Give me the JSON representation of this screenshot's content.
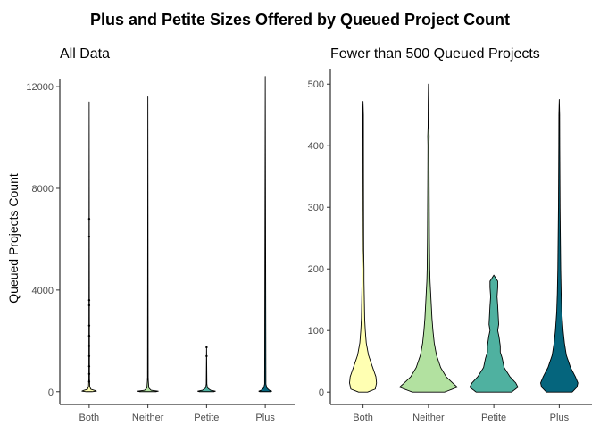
{
  "figure": {
    "title": "Plus and Petite Sizes Offered by Queued Project Count",
    "ylabel": "Queued Projects Count"
  },
  "chart_data": [
    {
      "type": "violin",
      "title": "All Data",
      "xlabel": "",
      "ylabel": "Queued Projects Count",
      "ylim": [
        -500,
        12600
      ],
      "yticks": [
        0,
        4000,
        8000,
        12000
      ],
      "categories": [
        "Both",
        "Neither",
        "Petite",
        "Plus"
      ],
      "fill_colors": [
        "#ffffb2",
        "#b2e1a0",
        "#4fb1a0",
        "#05657d"
      ],
      "series": [
        {
          "category": "Both",
          "max": 11400,
          "outliers": [
            6800,
            6100,
            3600,
            3400,
            2600,
            2200,
            1800,
            1400,
            1000,
            700,
            400
          ],
          "profile": [
            [
              0,
              0.18
            ],
            [
              20,
              0.45
            ],
            [
              50,
              0.35
            ],
            [
              100,
              0.1
            ],
            [
              200,
              0.04
            ],
            [
              500,
              0.02
            ],
            [
              11400,
              0.0
            ]
          ]
        },
        {
          "category": "Neither",
          "max": 11600,
          "outliers": [
            500
          ],
          "profile": [
            [
              0,
              0.5
            ],
            [
              20,
              0.65
            ],
            [
              60,
              0.2
            ],
            [
              150,
              0.06
            ],
            [
              500,
              0.02
            ],
            [
              11600,
              0.0
            ]
          ]
        },
        {
          "category": "Petite",
          "max": 1800,
          "outliers": [
            1750,
            1400
          ],
          "profile": [
            [
              0,
              0.45
            ],
            [
              20,
              0.55
            ],
            [
              60,
              0.25
            ],
            [
              150,
              0.06
            ],
            [
              300,
              0.02
            ],
            [
              1800,
              0.0
            ]
          ]
        },
        {
          "category": "Plus",
          "max": 12400,
          "outliers": [],
          "profile": [
            [
              0,
              0.35
            ],
            [
              20,
              0.4
            ],
            [
              60,
              0.25
            ],
            [
              150,
              0.1
            ],
            [
              300,
              0.04
            ],
            [
              12400,
              0.0
            ]
          ]
        }
      ]
    },
    {
      "type": "violin",
      "title": "Fewer than 500 Queued Projects",
      "xlabel": "",
      "ylabel": "",
      "ylim": [
        -20,
        525
      ],
      "yticks": [
        0,
        100,
        200,
        300,
        400,
        500
      ],
      "categories": [
        "Both",
        "Neither",
        "Petite",
        "Plus"
      ],
      "fill_colors": [
        "#ffffb2",
        "#b2e1a0",
        "#4fb1a0",
        "#05657d"
      ],
      "series": [
        {
          "category": "Both",
          "max": 472,
          "profile": [
            [
              0,
              0.14
            ],
            [
              5,
              0.38
            ],
            [
              15,
              0.42
            ],
            [
              25,
              0.4
            ],
            [
              40,
              0.3
            ],
            [
              60,
              0.17
            ],
            [
              80,
              0.1
            ],
            [
              100,
              0.07
            ],
            [
              120,
              0.05
            ],
            [
              150,
              0.04
            ],
            [
              180,
              0.03
            ],
            [
              200,
              0.03
            ],
            [
              230,
              0.02
            ],
            [
              260,
              0.018
            ],
            [
              300,
              0.016
            ],
            [
              350,
              0.014
            ],
            [
              400,
              0.013
            ],
            [
              450,
              0.012
            ],
            [
              472,
              0.0
            ]
          ]
        },
        {
          "category": "Neither",
          "max": 500,
          "profile": [
            [
              0,
              0.5
            ],
            [
              8,
              0.9
            ],
            [
              15,
              0.75
            ],
            [
              25,
              0.55
            ],
            [
              40,
              0.38
            ],
            [
              60,
              0.25
            ],
            [
              80,
              0.18
            ],
            [
              100,
              0.14
            ],
            [
              120,
              0.11
            ],
            [
              150,
              0.08
            ],
            [
              180,
              0.05
            ],
            [
              200,
              0.04
            ],
            [
              250,
              0.03
            ],
            [
              300,
              0.025
            ],
            [
              350,
              0.02
            ],
            [
              400,
              0.016
            ],
            [
              415,
              0.022
            ],
            [
              430,
              0.012
            ],
            [
              470,
              0.008
            ],
            [
              500,
              0.0
            ]
          ]
        },
        {
          "category": "Petite",
          "max": 190,
          "profile": [
            [
              0,
              0.55
            ],
            [
              8,
              0.75
            ],
            [
              15,
              0.68
            ],
            [
              25,
              0.5
            ],
            [
              40,
              0.32
            ],
            [
              55,
              0.26
            ],
            [
              65,
              0.2
            ],
            [
              75,
              0.2
            ],
            [
              90,
              0.16
            ],
            [
              100,
              0.12
            ],
            [
              110,
              0.15
            ],
            [
              120,
              0.14
            ],
            [
              140,
              0.12
            ],
            [
              155,
              0.1
            ],
            [
              170,
              0.12
            ],
            [
              180,
              0.12
            ],
            [
              190,
              0.0
            ]
          ]
        },
        {
          "category": "Plus",
          "max": 475,
          "profile": [
            [
              0,
              0.4
            ],
            [
              8,
              0.55
            ],
            [
              15,
              0.58
            ],
            [
              25,
              0.5
            ],
            [
              40,
              0.35
            ],
            [
              60,
              0.22
            ],
            [
              80,
              0.16
            ],
            [
              100,
              0.12
            ],
            [
              130,
              0.08
            ],
            [
              160,
              0.06
            ],
            [
              200,
              0.045
            ],
            [
              250,
              0.035
            ],
            [
              300,
              0.025
            ],
            [
              350,
              0.02
            ],
            [
              400,
              0.015
            ],
            [
              450,
              0.012
            ],
            [
              475,
              0.0
            ]
          ]
        }
      ]
    }
  ]
}
